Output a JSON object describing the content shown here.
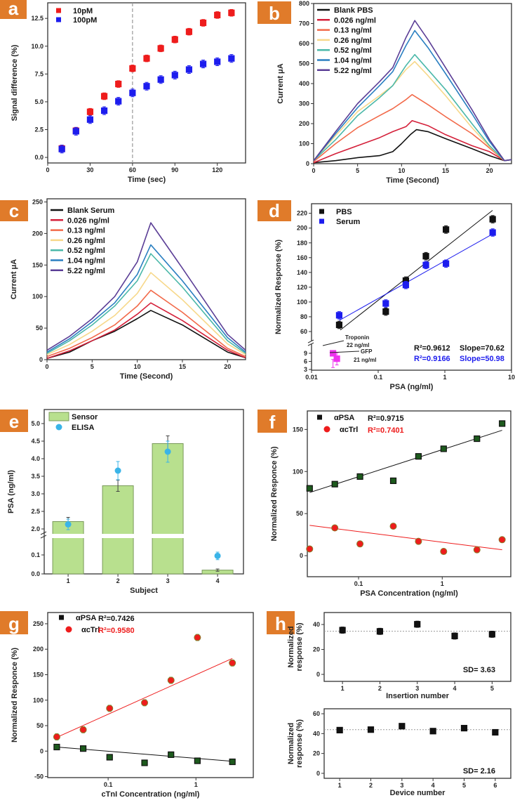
{
  "panel_label_color": "#e07b2a",
  "chart_data": [
    {
      "panel": "a",
      "type": "scatter",
      "xscale": "linear",
      "xlim": [
        0,
        140
      ],
      "ylim": [
        -0.5,
        13.9
      ],
      "x_ticks": [
        "0",
        "30",
        "60",
        "90",
        "120"
      ],
      "y_ticks": [
        "0.0",
        "2.5",
        "5.0",
        "7.5",
        "10.0",
        "12.5"
      ],
      "xlabel": "Time (sec)",
      "ylabel": "Signal difference (%)",
      "vline": {
        "x": 60,
        "color": "#999999"
      },
      "series": [
        {
          "name": "10pM",
          "color": "#ee1c1c",
          "marker": "square",
          "x": [
            10,
            20,
            30,
            40,
            50,
            60,
            70,
            80,
            90,
            100,
            110,
            120,
            130
          ],
          "y": [
            0.8,
            2.4,
            4.1,
            5.5,
            6.6,
            8.0,
            8.9,
            9.8,
            10.6,
            11.3,
            12.1,
            12.8,
            13.0
          ],
          "err": 0.3
        },
        {
          "name": "100pM",
          "color": "#1c1cee",
          "marker": "square",
          "x": [
            10,
            20,
            30,
            40,
            50,
            60,
            70,
            80,
            90,
            100,
            110,
            120,
            130
          ],
          "y": [
            0.75,
            2.35,
            3.4,
            4.2,
            5.05,
            5.8,
            6.4,
            7.0,
            7.4,
            7.9,
            8.4,
            8.6,
            8.9
          ],
          "err": 0.35
        }
      ]
    },
    {
      "panel": "b",
      "type": "line",
      "xscale": "linear",
      "xlim": [
        0,
        22.5
      ],
      "ylim": [
        0,
        800
      ],
      "x_ticks": [
        "0",
        "5",
        "10",
        "15",
        "20"
      ],
      "y_ticks": [
        "0",
        "100",
        "200",
        "300",
        "400",
        "500",
        "600",
        "700",
        "800"
      ],
      "xlabel": "Time (Second)",
      "ylabel": "Current μA",
      "series": [
        {
          "name": "Blank PBS",
          "color": "#111111",
          "x": [
            0,
            2.5,
            5,
            7.5,
            9,
            10,
            11,
            11.7,
            13,
            15,
            18,
            20,
            21.7,
            22.5
          ],
          "y": [
            5,
            15,
            30,
            40,
            60,
            100,
            145,
            170,
            160,
            125,
            75,
            40,
            15,
            20
          ]
        },
        {
          "name": "0.026 ng/ml",
          "color": "#d4203a",
          "x": [
            0,
            2.5,
            5,
            7.5,
            9,
            10.5,
            11.2,
            13,
            15,
            18,
            20,
            21.7,
            22.5
          ],
          "y": [
            5,
            50,
            90,
            130,
            160,
            185,
            215,
            190,
            145,
            90,
            60,
            15,
            20
          ]
        },
        {
          "name": "0.13 ng/ml",
          "color": "#f26a4a",
          "x": [
            0,
            2.5,
            5,
            7.5,
            9,
            10.5,
            11.2,
            13,
            15,
            18,
            19,
            21.7,
            22.5
          ],
          "y": [
            10,
            100,
            180,
            240,
            275,
            320,
            345,
            295,
            235,
            150,
            115,
            15,
            20
          ]
        },
        {
          "name": "0.26 ng/ml",
          "color": "#f7d88a",
          "x": [
            0,
            2.5,
            5,
            7.5,
            9,
            10.5,
            11.5,
            13,
            15,
            18,
            20,
            21.7,
            22.5
          ],
          "y": [
            15,
            140,
            260,
            340,
            390,
            470,
            510,
            440,
            340,
            180,
            85,
            15,
            20
          ]
        },
        {
          "name": "0.52 ng/ml",
          "color": "#4bb8a9",
          "x": [
            0,
            2.5,
            5,
            7.5,
            9,
            10.5,
            11.5,
            13,
            15,
            18,
            20,
            21.7,
            22.5
          ],
          "y": [
            15,
            120,
            240,
            330,
            390,
            490,
            545,
            470,
            370,
            200,
            90,
            15,
            20
          ]
        },
        {
          "name": "1.04 ng/ml",
          "color": "#2a7fc1",
          "x": [
            0,
            2.5,
            5,
            7.5,
            9,
            10.5,
            11.5,
            13,
            15,
            18,
            20,
            21.7,
            22.5
          ],
          "y": [
            15,
            150,
            280,
            390,
            460,
            590,
            665,
            580,
            450,
            250,
            110,
            15,
            20
          ]
        },
        {
          "name": "5.22 ng/ml",
          "color": "#5b3e96",
          "x": [
            0,
            2.5,
            5,
            7.5,
            9,
            10.5,
            11.5,
            13,
            15,
            18,
            20,
            21.7,
            22.5
          ],
          "y": [
            15,
            160,
            300,
            410,
            480,
            630,
            715,
            620,
            480,
            270,
            120,
            15,
            20
          ]
        }
      ]
    },
    {
      "panel": "c",
      "type": "line",
      "xscale": "linear",
      "xlim": [
        0,
        22
      ],
      "ylim": [
        0,
        255
      ],
      "x_ticks": [
        "0",
        "5",
        "10",
        "15",
        "20"
      ],
      "y_ticks": [
        "0",
        "50",
        "100",
        "150",
        "200",
        "250"
      ],
      "xlabel": "Time (Second)",
      "ylabel": "Current μA",
      "series": [
        {
          "name": "Blank Serum",
          "color": "#111111",
          "x": [
            0,
            2.5,
            5,
            7.5,
            10,
            11.5,
            15,
            20,
            22
          ],
          "y": [
            2,
            12,
            30,
            45,
            65,
            78,
            55,
            12,
            3
          ]
        },
        {
          "name": "0.026 ng/ml",
          "color": "#d4203a",
          "x": [
            0,
            2.5,
            5,
            7.5,
            10,
            11.5,
            15,
            20,
            22
          ],
          "y": [
            2,
            14,
            30,
            47,
            72,
            90,
            62,
            15,
            3
          ]
        },
        {
          "name": "0.13 ng/ml",
          "color": "#f26a4a",
          "x": [
            0,
            2.5,
            5,
            7.5,
            10,
            11.5,
            15,
            20,
            22
          ],
          "y": [
            5,
            18,
            35,
            55,
            85,
            110,
            75,
            18,
            5
          ]
        },
        {
          "name": "0.26 ng/ml",
          "color": "#f7d88a",
          "x": [
            0,
            2.5,
            5,
            7.5,
            10,
            11.5,
            15,
            20,
            22
          ],
          "y": [
            8,
            24,
            45,
            70,
            105,
            138,
            95,
            25,
            8
          ]
        },
        {
          "name": "0.52 ng/ml",
          "color": "#4bb8a9",
          "x": [
            0,
            2.5,
            5,
            7.5,
            10,
            11.5,
            15,
            20,
            22
          ],
          "y": [
            10,
            30,
            55,
            85,
            125,
            168,
            115,
            30,
            10
          ]
        },
        {
          "name": "1.04 ng/ml",
          "color": "#2a7fc1",
          "x": [
            0,
            2.5,
            5,
            7.5,
            10,
            11.5,
            15,
            20,
            22
          ],
          "y": [
            12,
            33,
            60,
            90,
            135,
            182,
            125,
            35,
            12
          ]
        },
        {
          "name": "5.22 ng/ml",
          "color": "#5b3e96",
          "x": [
            0,
            2.5,
            5,
            7.5,
            10,
            11.5,
            15,
            20,
            22
          ],
          "y": [
            15,
            37,
            65,
            100,
            155,
            217,
            145,
            40,
            15
          ]
        }
      ]
    },
    {
      "panel": "d",
      "type": "scatter",
      "xscale": "log",
      "xlim": [
        0.01,
        10
      ],
      "y_segments": [
        [
          3,
          11
        ],
        [
          50,
          233
        ]
      ],
      "x_ticks": [
        "0.01",
        "0.1",
        "1",
        "10"
      ],
      "y_ticks": [
        "3",
        "6",
        "9",
        "60",
        "80",
        "100",
        "120",
        "140",
        "160",
        "180",
        "200",
        "220"
      ],
      "xlabel": "PSA (ng/ml)",
      "ylabel": "Normalized Response (%)",
      "series": [
        {
          "name": "PBS",
          "color": "#111111",
          "marker": "square",
          "x": [
            0.026,
            0.13,
            0.26,
            0.52,
            1.04,
            5.22
          ],
          "y": [
            69,
            87,
            129,
            162,
            198,
            212
          ],
          "err": 5
        },
        {
          "name": "Serum",
          "color": "#1c1cee",
          "marker": "square",
          "x": [
            0.026,
            0.13,
            0.26,
            0.52,
            1.04,
            5.22
          ],
          "y": [
            82,
            98,
            123,
            150,
            152,
            194
          ],
          "err": 5
        },
        {
          "color": "#ee33ee",
          "marker": "square",
          "x": [
            0.021,
            0.024
          ],
          "y": [
            9,
            7
          ],
          "err": 2.3
        }
      ],
      "fits": [
        {
          "color": "#111111",
          "x": [
            0.027,
            5.2
          ],
          "y": [
            62,
            224
          ]
        },
        {
          "color": "#1c1cee",
          "x": [
            0.026,
            5.2
          ],
          "y": [
            75,
            192
          ]
        }
      ],
      "annotations": [
        {
          "text": "R²=0.9612",
          "color": "#111111"
        },
        {
          "text": "Slope=70.62",
          "color": "#111111"
        },
        {
          "text": "R²=0.9166",
          "color": "#1c1cee"
        },
        {
          "text": "Slope=50.98",
          "color": "#1c1cee"
        },
        {
          "text": "Troponin",
          "color": "#222222"
        },
        {
          "text": "22 ng/ml",
          "color": "#222222"
        },
        {
          "text": "GFP",
          "color": "#222222"
        },
        {
          "text": "21 ng/ml",
          "color": "#222222"
        }
      ]
    },
    {
      "panel": "e",
      "type": "bar",
      "xscale": "linear",
      "xlim": [
        0.52,
        4.52
      ],
      "y_segments": [
        [
          0,
          0.18
        ],
        [
          1.85,
          5.4
        ]
      ],
      "x_ticks": [
        "1",
        "2",
        "3",
        "4"
      ],
      "y_ticks": [
        "0.0",
        "0.1",
        "2.0",
        "2.5",
        "3.0",
        "3.5",
        "4.0",
        "4.5",
        "5.0"
      ],
      "xlabel": "Subject",
      "ylabel": "PSA (ng/ml)",
      "series": [
        {
          "name": "Sensor",
          "color": "#b8e08e",
          "marker": "bar",
          "x": [
            1,
            2,
            3,
            4
          ],
          "y": [
            2.21,
            3.23,
            4.43,
            0.02
          ],
          "err": [
            0.12,
            0.16,
            0.22,
            0.006
          ]
        },
        {
          "name": "ELISA",
          "color": "#3ab4e8",
          "marker": "circle",
          "x": [
            1,
            2,
            3,
            4
          ],
          "y": [
            2.13,
            3.66,
            4.2,
            0.095
          ],
          "err": [
            0.15,
            0.26,
            0.3,
            0.02
          ]
        }
      ]
    },
    {
      "panel": "f",
      "type": "scatter",
      "xscale": "log",
      "xlim": [
        0.0244,
        6.6
      ],
      "ylim": [
        -25,
        172
      ],
      "x_ticks": [
        "0.1",
        "1"
      ],
      "y_ticks": [
        "0",
        "50",
        "100",
        "150"
      ],
      "xlabel": "PSA Concentration (ng/ml)",
      "ylabel": "Normalized Responce (%)",
      "series": [
        {
          "name": "αPSA",
          "color": "#111111",
          "marker": "square",
          "x": [
            0.026,
            0.052,
            0.104,
            0.26,
            0.52,
            1.04,
            2.6,
            5.2
          ],
          "y": [
            80,
            85,
            94,
            89,
            118,
            127,
            139,
            157
          ],
          "err": 3
        },
        {
          "name": "αcTrl",
          "color": "#ee1c1c",
          "marker": "circle",
          "x": [
            0.026,
            0.052,
            0.104,
            0.26,
            0.52,
            1.04,
            2.6,
            5.2
          ],
          "y": [
            8,
            33,
            14,
            35,
            17,
            5,
            7,
            19
          ],
          "err": 3
        }
      ],
      "fits": [
        {
          "color": "#111111",
          "x": [
            0.026,
            5.2
          ],
          "y": [
            75,
            149
          ]
        },
        {
          "color": "#ee1c1c",
          "x": [
            0.026,
            5.2
          ],
          "y": [
            36,
            7
          ]
        }
      ],
      "annotations": [
        {
          "text": "R²=0.9715",
          "color": "#111111"
        },
        {
          "text": "R²=0.7401",
          "color": "#ee1c1c"
        }
      ]
    },
    {
      "panel": "g",
      "type": "scatter",
      "xscale": "log",
      "xlim": [
        0.0205,
        4.5
      ],
      "ylim": [
        -52,
        272
      ],
      "x_ticks": [
        "0.1",
        "1"
      ],
      "y_ticks": [
        "-50",
        "0",
        "50",
        "100",
        "150",
        "200",
        "250"
      ],
      "xlabel": "cTnI Concentration (ng/ml)",
      "ylabel": "Normalized Responce (%)",
      "series": [
        {
          "name": "αPSA",
          "color": "#111111",
          "marker": "square",
          "x": [
            0.026,
            0.052,
            0.104,
            0.26,
            0.52,
            1.04,
            2.6
          ],
          "y": [
            8,
            5,
            -12,
            -23,
            -7,
            -19,
            -21
          ],
          "err": 5
        },
        {
          "name": "αcTrl",
          "color": "#ee1c1c",
          "marker": "circle",
          "x": [
            0.026,
            0.052,
            0.104,
            0.26,
            0.52,
            1.04,
            2.6
          ],
          "y": [
            28,
            42,
            84,
            95,
            139,
            223,
            173
          ],
          "err": 6
        }
      ],
      "fits": [
        {
          "color": "#ee1c1c",
          "x": [
            0.026,
            2.6
          ],
          "y": [
            27,
            182
          ]
        },
        {
          "color": "#111111",
          "x": [
            0.026,
            2.6
          ],
          "y": [
            8,
            -20
          ]
        }
      ],
      "annotations": [
        {
          "text": "R²=0.7426",
          "color": "#111111"
        },
        {
          "text": "R²=0.9580",
          "color": "#ee1c1c"
        }
      ]
    },
    {
      "panel": "h",
      "type": "scatter",
      "xscale": "linear",
      "xlim": [
        0.51,
        5.5
      ],
      "ylim": [
        -5.6,
        49.6
      ],
      "x_ticks": [
        "1",
        "2",
        "3",
        "4",
        "5"
      ],
      "y_ticks": [
        "0",
        "20",
        "40"
      ],
      "xlabel": "Insertion number",
      "ylabel": [
        "Normalized",
        "response (%)"
      ],
      "hline": {
        "y": 34.6,
        "color": "#999999"
      },
      "series": [
        {
          "color": "#111111",
          "marker": "square",
          "x": [
            1,
            2,
            3,
            4,
            5
          ],
          "y": [
            35.5,
            34.5,
            40.2,
            30.8,
            32.2
          ],
          "err": 2.5
        }
      ],
      "annotations": [
        {
          "text": "SD= 3.63",
          "color": "#111111"
        }
      ]
    },
    {
      "panel": "",
      "type": "scatter",
      "xscale": "linear",
      "xlim": [
        0.5,
        6.5
      ],
      "ylim": [
        -5,
        65
      ],
      "x_ticks": [
        "1",
        "2",
        "3",
        "4",
        "5",
        "6"
      ],
      "y_ticks": [
        "0",
        "20",
        "40",
        "60"
      ],
      "xlabel": "Device number",
      "ylabel": [
        "Normalized",
        "response (%)"
      ],
      "hline": {
        "y": 44,
        "color": "#999999"
      },
      "series": [
        {
          "color": "#111111",
          "marker": "square",
          "x": [
            1,
            2,
            3,
            4,
            5,
            6
          ],
          "y": [
            43.5,
            44,
            47.5,
            42.5,
            45.5,
            41.3
          ],
          "err": 2.5
        }
      ],
      "annotations": [
        {
          "text": "SD= 2.16",
          "color": "#111111"
        }
      ]
    }
  ]
}
